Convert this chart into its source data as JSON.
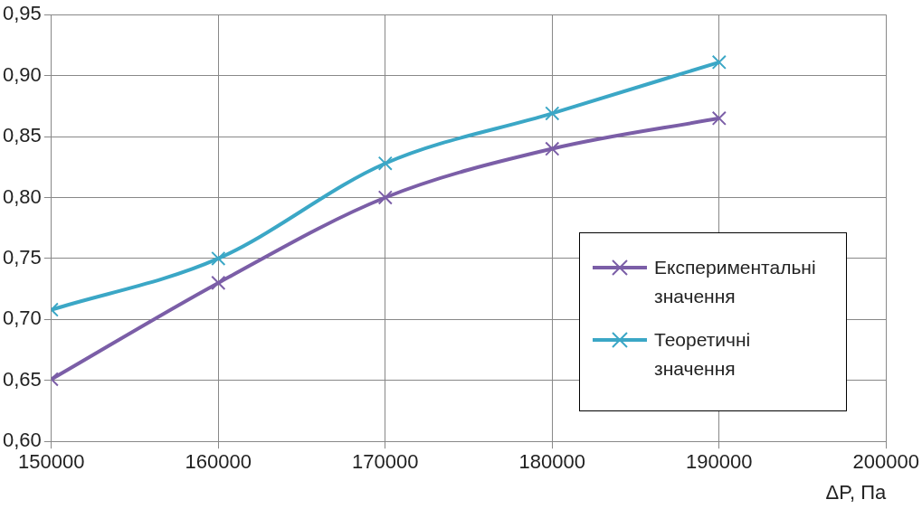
{
  "chart_data": {
    "type": "line",
    "xlabel": "ΔP, Па",
    "x": [
      150000,
      160000,
      170000,
      180000,
      190000
    ],
    "series": [
      {
        "name": "Експериментальні значення",
        "color": "#7b5ea7",
        "marker": "cross",
        "values": [
          0.651,
          0.73,
          0.8,
          0.84,
          0.865
        ]
      },
      {
        "name": "Теоретичні значення",
        "color": "#3ba7c6",
        "marker": "cross",
        "values": [
          0.708,
          0.75,
          0.828,
          0.869,
          0.911
        ]
      }
    ],
    "xlim": [
      150000,
      200000
    ],
    "xticks": [
      150000,
      160000,
      170000,
      180000,
      190000,
      200000
    ],
    "ylim": [
      0.6,
      0.95
    ],
    "yticks": [
      {
        "value": 0.6,
        "label": "0,60"
      },
      {
        "value": 0.65,
        "label": "0,65"
      },
      {
        "value": 0.7,
        "label": "0,70"
      },
      {
        "value": 0.75,
        "label": "0,75"
      },
      {
        "value": 0.8,
        "label": "0,80"
      },
      {
        "value": 0.85,
        "label": "0,85"
      },
      {
        "value": 0.9,
        "label": "0,90"
      },
      {
        "value": 0.95,
        "label": "0,95"
      }
    ],
    "grid": true,
    "legend": "right",
    "line_style": "solid"
  }
}
